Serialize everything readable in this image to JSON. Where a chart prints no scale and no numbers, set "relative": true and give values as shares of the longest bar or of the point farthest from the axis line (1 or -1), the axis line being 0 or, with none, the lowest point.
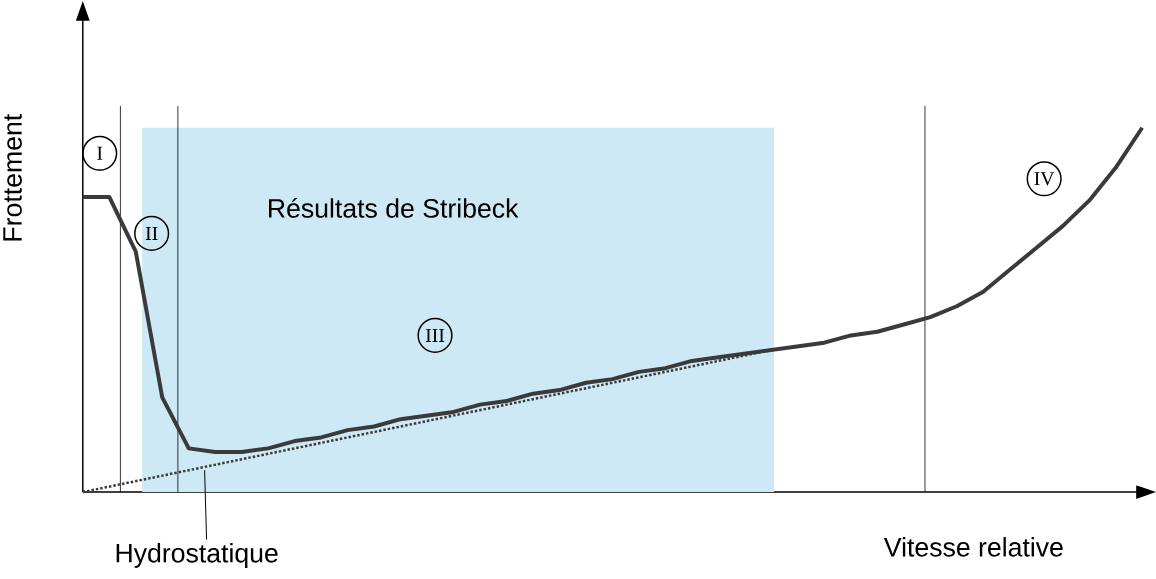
{
  "chart_data": {
    "type": "line",
    "relative": true,
    "xlabel": "Vitesse relative",
    "ylabel": "Frottement",
    "categories": [
      null,
      null,
      null,
      null,
      null,
      null,
      null,
      null,
      null,
      null,
      null,
      null,
      null,
      null,
      null,
      null,
      null,
      null,
      null,
      null,
      null,
      null,
      null,
      null,
      null,
      null,
      null,
      null,
      null,
      null,
      null,
      null,
      null,
      null,
      null,
      null,
      null,
      null,
      null,
      null,
      null
    ],
    "series": [
      {
        "color": "#3a3a3a",
        "line_style": "solid",
        "values": [
          0.81,
          0.81,
          0.66,
          0.26,
          0.12,
          0.11,
          0.11,
          0.12,
          0.14,
          0.15,
          0.17,
          0.18,
          0.2,
          0.21,
          0.22,
          0.24,
          0.25,
          0.27,
          0.28,
          0.3,
          0.31,
          0.33,
          0.34,
          0.36,
          0.37,
          0.38,
          0.39,
          0.4,
          0.41,
          0.43,
          0.44,
          0.46,
          0.48,
          0.51,
          0.55,
          0.61,
          0.67,
          0.73,
          0.8,
          0.89,
          1.0
        ]
      },
      {
        "name": "Hydrostatique",
        "color": "#3a3a3a",
        "line_style": "dotted",
        "values": [
          0,
          0.015,
          0.03,
          0.045,
          0.06,
          0.075,
          0.09,
          0.105,
          0.12,
          0.135,
          0.15,
          0.165,
          0.18,
          0.195,
          0.21,
          0.225,
          0.24,
          0.255,
          0.27,
          0.285,
          0.3,
          0.315,
          0.33,
          0.345,
          0.36,
          0.375,
          0.39,
          null,
          null,
          null,
          null,
          null,
          null,
          null,
          null,
          null,
          null,
          null,
          null,
          null,
          null
        ]
      }
    ],
    "title": "Résultats de Stribeck",
    "annotations": [
      "I",
      "II",
      "III",
      "IV"
    ]
  }
}
